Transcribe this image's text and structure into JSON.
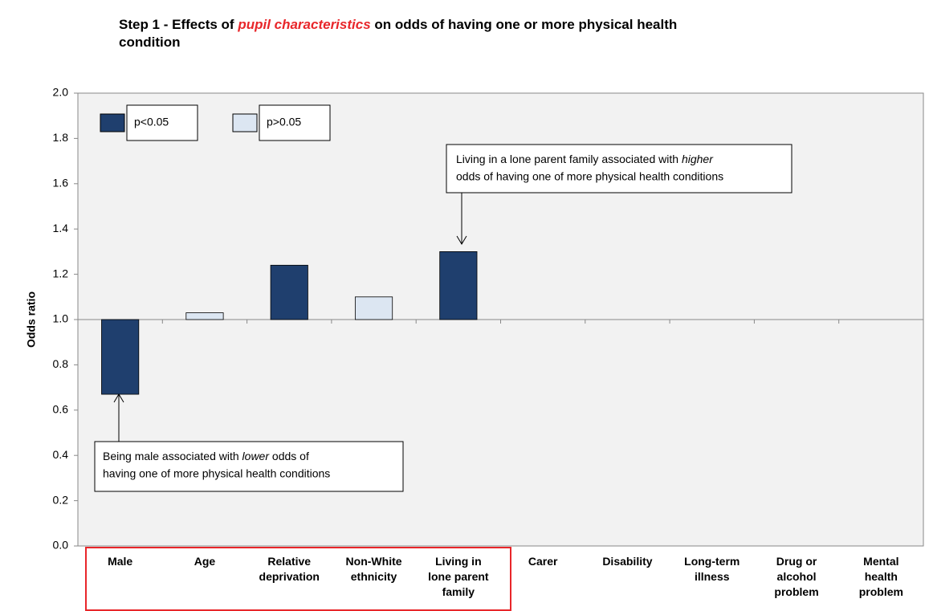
{
  "chart_data": {
    "type": "bar",
    "title": [
      "Step 1 - Effects of ",
      "pupil characteristics",
      " on odds of having one or more physical health condition"
    ],
    "y_label": "Odds ratio",
    "categories": [
      "Male",
      "Age",
      "Relative deprivation",
      "Non-White ethnicity",
      "Living in lone parent family",
      "Carer",
      "Disability",
      "Long-term illness",
      "Drug or alcohol problem",
      "Mental health problem"
    ],
    "series": [
      {
        "name": "p<0.05",
        "color": "#1f3f6e",
        "values": [
          0.67,
          null,
          1.24,
          null,
          1.3,
          null,
          null,
          null,
          null,
          null
        ]
      },
      {
        "name": "p>0.05",
        "color": "#dce6f2",
        "values": [
          null,
          1.03,
          null,
          1.1,
          null,
          null,
          null,
          null,
          null,
          null
        ]
      }
    ],
    "baseline": 1,
    "ylim": [
      0,
      2
    ],
    "yticks": [
      {
        "value": 0,
        "label": "0.0"
      },
      0.2,
      0.4,
      0.6,
      0.8,
      {
        "value": 1,
        "label": "1.0"
      },
      1.2,
      1.4,
      1.6,
      1.8,
      {
        "value": 2,
        "label": "2.0"
      }
    ],
    "grid": false,
    "legend": "upper left",
    "annotations": [
      {
        "lines": [
          [
            "Living in a lone parent family associated with ",
            "higher"
          ],
          [
            "odds of having one of more physical health conditions"
          ]
        ]
      },
      {
        "lines": [
          [
            "Being male associated with ",
            "lower",
            " odds of"
          ],
          [
            "having one of more physical health conditions"
          ]
        ]
      }
    ]
  }
}
